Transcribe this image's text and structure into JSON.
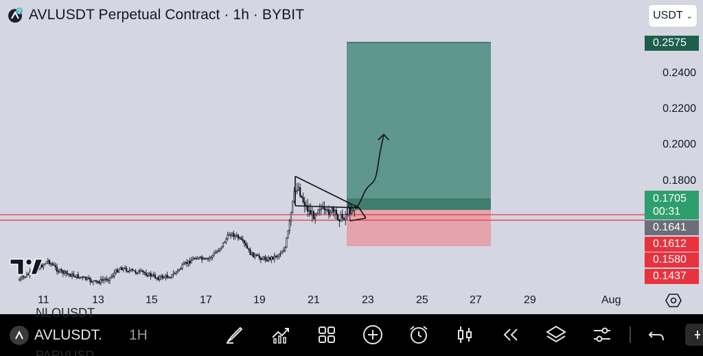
{
  "header": {
    "title": "AVLUSDT Perpetual Contract · 1h · BYBIT",
    "currency_button": "USDT"
  },
  "price_axis": {
    "labels": [
      "0.2400",
      "0.2200",
      "0.2000",
      "0.1800"
    ],
    "tags": {
      "target": "0.2575",
      "current": "0.1705",
      "countdown": "00:31",
      "entry": "0.1641",
      "line_a": "0.1612",
      "line_b": "0.1580",
      "stop": "0.1437"
    },
    "colors": {
      "target": "#1d5e4c",
      "current": "#2f9e6f",
      "entry": "#6b6e78",
      "red": "#e8333f"
    }
  },
  "time_axis": {
    "labels": [
      "11",
      "13",
      "15",
      "17",
      "19",
      "21",
      "23",
      "25",
      "27",
      "29",
      "Aug"
    ]
  },
  "toolbar": {
    "symbol": "AVLUSDT.",
    "timeframe": "1H",
    "background_ghosts": [
      "NLOUSDT",
      "PARVUSD"
    ],
    "icons": [
      "pen-icon",
      "indicators-icon",
      "grid-icon",
      "add-icon",
      "alarm-icon",
      "candles-icon",
      "replay-icon",
      "layers-icon",
      "settings-sliders-icon",
      "undo-icon",
      "more-icon"
    ]
  }
}
